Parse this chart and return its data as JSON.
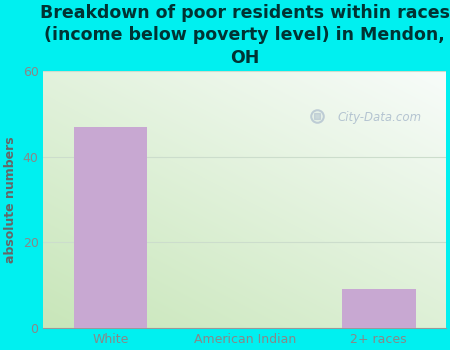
{
  "categories": [
    "White",
    "American Indian",
    "2+ races"
  ],
  "values": [
    47,
    0,
    9
  ],
  "bar_color": "#c8a8d2",
  "title": "Breakdown of poor residents within races\n(income below poverty level) in Mendon,\nOH",
  "ylabel": "absolute numbers",
  "ylim": [
    0,
    60
  ],
  "yticks": [
    0,
    20,
    40,
    60
  ],
  "bg_color": "#00f0f0",
  "plot_bg_green": [
    200,
    230,
    185
  ],
  "plot_bg_white": [
    248,
    252,
    250
  ],
  "watermark": "City-Data.com",
  "title_fontsize": 12.5,
  "label_fontsize": 9,
  "tick_fontsize": 9,
  "tick_color": "#888888",
  "title_color": "#003333",
  "ylabel_color": "#666666",
  "grid_color": "#ccddcc",
  "watermark_color": "#aabbcc"
}
